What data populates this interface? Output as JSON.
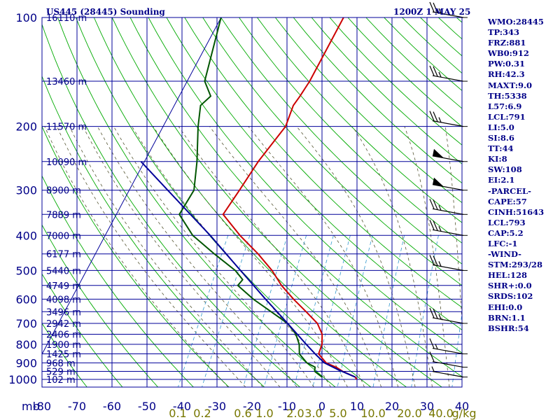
{
  "header": {
    "station": "US445 (28445) Sounding",
    "datetime": "1200Z  1 MAY 25"
  },
  "colors": {
    "frame": "#000099",
    "isotherm": "#000099",
    "dry_adiabat": "#00aa00",
    "moist_adiabat": "#555533",
    "mixing_ratio": "#3399cc",
    "temperature": "#cc0000",
    "dewpoint": "#005500",
    "parcel": "#000099",
    "text": "#000088",
    "mixing_label": "#777700"
  },
  "stats": [
    "WMO:28445",
    "TP:343",
    "FRZ:881",
    "WB0:912",
    "PW:0.31",
    "RH:42.3",
    "MAXT:9.0",
    "TH:5338",
    "L57:6.9",
    "LCL:791",
    "LI:5.0",
    "SI:8.6",
    "TT:44",
    "KI:8",
    "SW:108",
    "EI:2.1",
    "-PARCEL-",
    "CAPE:57",
    "CINH:51643",
    "LCL:793",
    "CAP:5.2",
    "LFC:-1",
    "-WIND-",
    "STM:293/28",
    "HEL:128",
    "SHR+:0.0",
    "SRDS:102",
    "EHI:0.0",
    "BRN:1.1",
    "BSHR:54"
  ],
  "chart_data": {
    "type": "line",
    "subtype": "skew-T log-p",
    "x_label_left": "mb",
    "mixing_ratio_unit": "g/kg",
    "pressure_ticks": [
      100,
      200,
      300,
      400,
      500,
      600,
      700,
      800,
      900,
      1000
    ],
    "temperature_ticks": [
      "-80",
      "-70",
      "-60",
      "-50",
      "-40",
      "-30",
      "-20",
      "-10",
      "0",
      "10",
      "20",
      "30",
      "40"
    ],
    "mixing_ratio_labels": [
      "0.1",
      "0.2",
      "0.6",
      "1.0",
      "2.0",
      "3.0",
      "5.0",
      "10.0",
      "20.0",
      "40.0",
      "g/kg"
    ],
    "height_labels": [
      {
        "p": 100,
        "label": "16110 m"
      },
      {
        "p": 150,
        "label": "13460 m"
      },
      {
        "p": 200,
        "label": "11570 m"
      },
      {
        "p": 250,
        "label": "10090 m"
      },
      {
        "p": 300,
        "label": "8900 m"
      },
      {
        "p": 350,
        "label": "7889 m"
      },
      {
        "p": 400,
        "label": "7000 m"
      },
      {
        "p": 450,
        "label": "6177 m"
      },
      {
        "p": 500,
        "label": "5440 m"
      },
      {
        "p": 550,
        "label": "4749 m"
      },
      {
        "p": 600,
        "label": "4098 m"
      },
      {
        "p": 650,
        "label": "3496 m"
      },
      {
        "p": 700,
        "label": "2942 m"
      },
      {
        "p": 750,
        "label": "2406 m"
      },
      {
        "p": 800,
        "label": "1900 m"
      },
      {
        "p": 850,
        "label": "1425 m"
      },
      {
        "p": 900,
        "label": "968 m"
      },
      {
        "p": 950,
        "label": "529 m"
      },
      {
        "p": 1000,
        "label": "102 m"
      }
    ],
    "series": [
      {
        "values": [
          {
            "p": 1000,
            "t": 8.7
          },
          {
            "p": 985,
            "t": 8.0
          },
          {
            "p": 950,
            "t": 3.5
          },
          {
            "p": 925,
            "t": 1.0
          },
          {
            "p": 900,
            "t": -2.5
          },
          {
            "p": 850,
            "t": -6.0
          },
          {
            "p": 800,
            "t": -6.5
          },
          {
            "p": 750,
            "t": -8.0
          },
          {
            "p": 700,
            "t": -11.0
          },
          {
            "p": 650,
            "t": -16.0
          },
          {
            "p": 600,
            "t": -21.5
          },
          {
            "p": 550,
            "t": -27.0
          },
          {
            "p": 500,
            "t": -32.0
          },
          {
            "p": 450,
            "t": -38.5
          },
          {
            "p": 400,
            "t": -46.5
          },
          {
            "p": 350,
            "t": -54.5
          },
          {
            "p": 300,
            "t": -53.5
          },
          {
            "p": 250,
            "t": -52.5
          },
          {
            "p": 200,
            "t": -50.0
          },
          {
            "p": 175,
            "t": -51.0
          },
          {
            "p": 165,
            "t": -50.5
          },
          {
            "p": 150,
            "t": -50.0
          },
          {
            "p": 100,
            "t": -50.0
          }
        ]
      },
      {
        "values": [
          {
            "p": 985,
            "t": -1.5
          },
          {
            "p": 950,
            "t": -4.5
          },
          {
            "p": 925,
            "t": -5.0
          },
          {
            "p": 900,
            "t": -8.0
          },
          {
            "p": 850,
            "t": -11.5
          },
          {
            "p": 800,
            "t": -13.0
          },
          {
            "p": 750,
            "t": -15.5
          },
          {
            "p": 700,
            "t": -19.5
          },
          {
            "p": 650,
            "t": -26.0
          },
          {
            "p": 600,
            "t": -33.0
          },
          {
            "p": 550,
            "t": -39.5
          },
          {
            "p": 530,
            "t": -39.0
          },
          {
            "p": 500,
            "t": -42.5
          },
          {
            "p": 450,
            "t": -51.0
          },
          {
            "p": 400,
            "t": -60.0
          },
          {
            "p": 350,
            "t": -67.0
          },
          {
            "p": 300,
            "t": -66.5
          },
          {
            "p": 250,
            "t": -70.0
          },
          {
            "p": 200,
            "t": -75.0
          },
          {
            "p": 175,
            "t": -77.5
          },
          {
            "p": 165,
            "t": -76.0
          },
          {
            "p": 150,
            "t": -80.0
          },
          {
            "p": 100,
            "t": -85.0
          }
        ]
      },
      {
        "values": [
          {
            "p": 985,
            "t": 8.0
          },
          {
            "p": 940,
            "t": 2.0
          },
          {
            "p": 900,
            "t": -3.0
          },
          {
            "p": 850,
            "t": -7.0
          },
          {
            "p": 800,
            "t": -11.0
          },
          {
            "p": 700,
            "t": -19.5
          },
          {
            "p": 600,
            "t": -29.5
          },
          {
            "p": 500,
            "t": -41.0
          },
          {
            "p": 400,
            "t": -55.0
          },
          {
            "p": 300,
            "t": -74.0
          },
          {
            "p": 250,
            "t": -86.0
          }
        ]
      }
    ],
    "wind_barbs": [
      {
        "p": 100,
        "speed": 25
      },
      {
        "p": 150,
        "speed": 25
      },
      {
        "p": 200,
        "speed": 25
      },
      {
        "p": 250,
        "speed": 55
      },
      {
        "p": 300,
        "speed": 55
      },
      {
        "p": 350,
        "speed": 25
      },
      {
        "p": 400,
        "speed": 25
      },
      {
        "p": 500,
        "speed": 25
      },
      {
        "p": 700,
        "speed": 25
      },
      {
        "p": 850,
        "speed": 15
      },
      {
        "p": 925,
        "speed": 10
      },
      {
        "p": 985,
        "speed": 5
      }
    ]
  }
}
